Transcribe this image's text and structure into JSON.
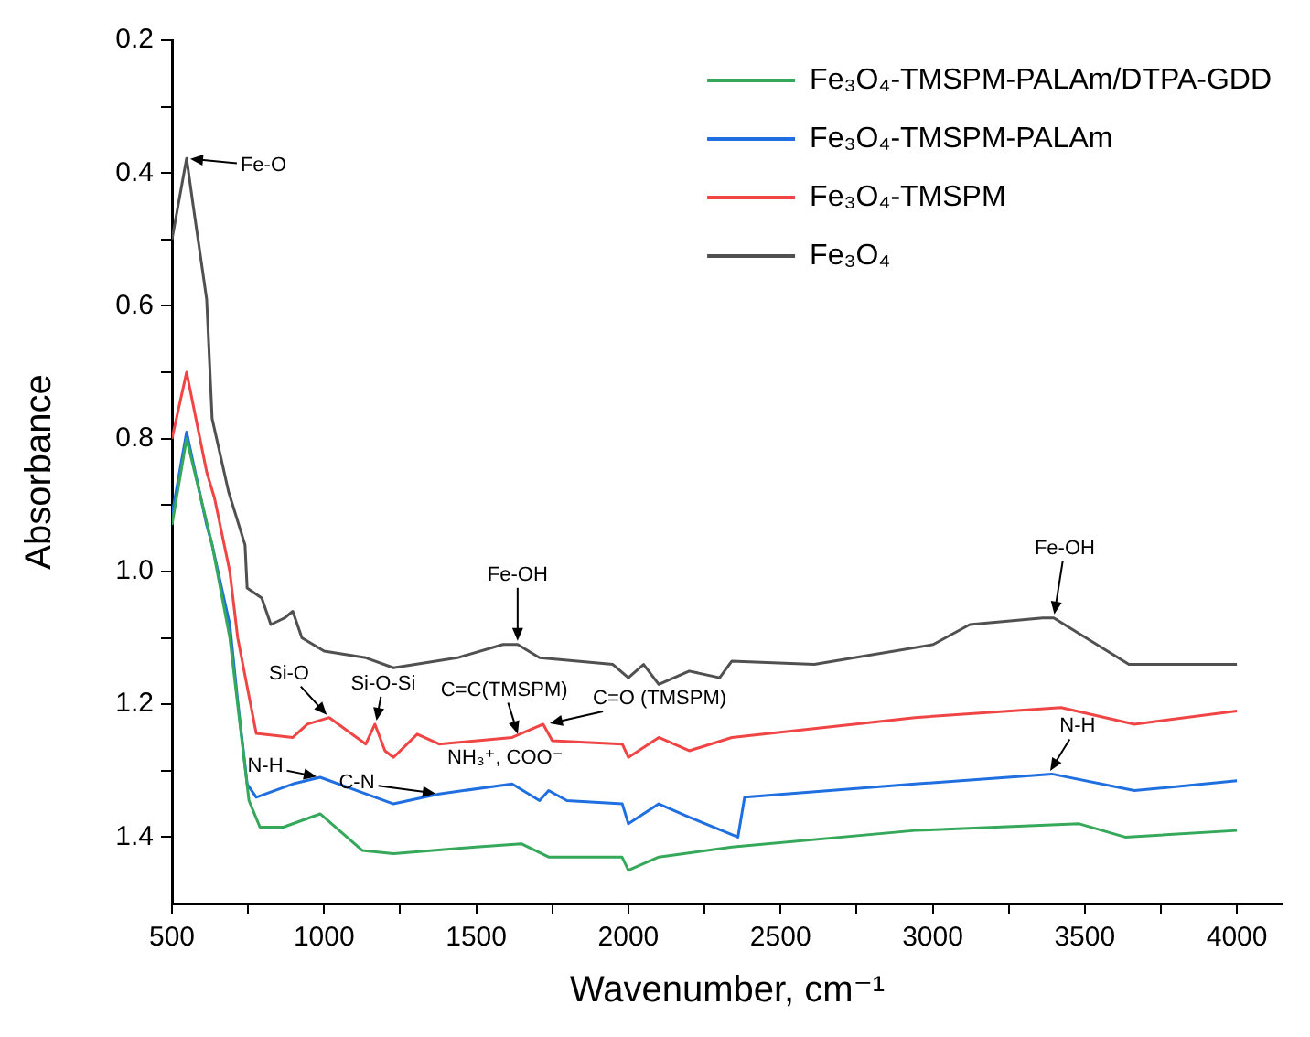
{
  "chart_data": {
    "type": "line",
    "xlabel": "Wavenumber, cm⁻¹",
    "ylabel": "Absorbance",
    "xlim": [
      500,
      4150
    ],
    "ylim": [
      1.5,
      0.2
    ],
    "xticks": [
      500,
      {
        "value": 750,
        "label": null
      },
      1000,
      {
        "value": 1250,
        "label": null
      },
      1500,
      {
        "value": 1750,
        "label": null
      },
      2000,
      {
        "value": 2250,
        "label": null
      },
      2500,
      {
        "value": 2750,
        "label": null
      },
      3000,
      {
        "value": 3250,
        "label": null
      },
      3500,
      {
        "value": 3750,
        "label": null
      },
      4000
    ],
    "yticks": [
      0.2,
      {
        "value": 0.3,
        "label": null
      },
      0.4,
      {
        "value": 0.5,
        "label": null
      },
      0.6,
      {
        "value": 0.7,
        "label": null
      },
      0.8,
      {
        "value": 0.9,
        "label": null
      },
      {
        "value": 1.0,
        "label": "1.0"
      },
      {
        "value": 1.1,
        "label": null
      },
      1.2,
      {
        "value": 1.3,
        "label": null
      },
      1.4
    ],
    "grid": false,
    "legend": "top right",
    "marker": "none",
    "line_style": "solid",
    "series": [
      {
        "name": "Fe₃O₄-TMSPM-PALAm/DTPA-GDD",
        "color": "#35a85a",
        "x": [
          500,
          548,
          632,
          690,
          753,
          789,
          866,
          987,
          1125,
          1228,
          1498,
          1648,
          1738,
          1979,
          2000,
          2100,
          2340,
          2942,
          3482,
          3633,
          4000
        ],
        "values": [
          0.93,
          0.8,
          0.96,
          1.1,
          1.345,
          1.385,
          1.385,
          1.365,
          1.42,
          1.425,
          1.415,
          1.41,
          1.43,
          1.43,
          1.45,
          1.43,
          1.415,
          1.39,
          1.38,
          1.4,
          1.39
        ]
      },
      {
        "name": "Fe₃O₄-TMSPM-PALAm",
        "color": "#1f6fe0",
        "x": [
          500,
          548,
          614,
          632,
          690,
          716,
          747,
          777,
          897,
          987,
          1137,
          1228,
          1378,
          1618,
          1708,
          1738,
          1798,
          1980,
          2000,
          2100,
          2200,
          2360,
          2382,
          2942,
          3392,
          3663,
          4000
        ],
        "values": [
          0.915,
          0.79,
          0.93,
          0.96,
          1.08,
          1.195,
          1.32,
          1.34,
          1.32,
          1.31,
          1.335,
          1.35,
          1.335,
          1.32,
          1.345,
          1.33,
          1.345,
          1.35,
          1.38,
          1.35,
          1.37,
          1.4,
          1.34,
          1.32,
          1.305,
          1.33,
          1.315
        ]
      },
      {
        "name": "Fe₃O₄-TMSPM",
        "color": "#f04545",
        "x": [
          500,
          548,
          614,
          640,
          690,
          716,
          777,
          897,
          945,
          1017,
          1137,
          1167,
          1200,
          1228,
          1306,
          1378,
          1618,
          1720,
          1750,
          1980,
          2000,
          2100,
          2200,
          2340,
          2942,
          3422,
          3663,
          4000
        ],
        "values": [
          0.8,
          0.7,
          0.85,
          0.89,
          1.0,
          1.1,
          1.244,
          1.25,
          1.23,
          1.22,
          1.26,
          1.23,
          1.27,
          1.28,
          1.245,
          1.26,
          1.25,
          1.23,
          1.255,
          1.26,
          1.28,
          1.25,
          1.27,
          1.25,
          1.22,
          1.205,
          1.23,
          1.21
        ]
      },
      {
        "name": "Fe₃O₄",
        "color": "#505050",
        "x": [
          500,
          548,
          570,
          614,
          632,
          686,
          740,
          747,
          795,
          825,
          870,
          897,
          927,
          1000,
          1137,
          1228,
          1438,
          1588,
          1636,
          1708,
          1949,
          2000,
          2050,
          2100,
          2200,
          2300,
          2340,
          2611,
          3002,
          3122,
          3362,
          3398,
          3645,
          4000
        ],
        "values": [
          0.5,
          0.378,
          0.45,
          0.59,
          0.77,
          0.88,
          0.96,
          1.025,
          1.04,
          1.08,
          1.07,
          1.06,
          1.1,
          1.12,
          1.13,
          1.145,
          1.13,
          1.11,
          1.11,
          1.13,
          1.14,
          1.16,
          1.14,
          1.17,
          1.15,
          1.16,
          1.135,
          1.14,
          1.11,
          1.08,
          1.07,
          1.07,
          1.14,
          1.14
        ]
      }
    ],
    "annotations": [
      {
        "text": "Fe-O",
        "x": 548,
        "y": 0.378
      },
      {
        "text": "Si-O",
        "x": 1017,
        "y": 1.22
      },
      {
        "text": "Si-O-Si",
        "x": 1170,
        "y": 1.23
      },
      {
        "text": "C=C(TMSPM)",
        "x": 1640,
        "y": 1.25
      },
      {
        "text": "C=O (TMSPM)",
        "x": 1730,
        "y": 1.23
      },
      {
        "text": "N-H",
        "x": 987,
        "y": 1.31
      },
      {
        "text": "C-N",
        "x": 1378,
        "y": 1.335
      },
      "NH₃⁺, COO⁻",
      {
        "text": "Fe-OH",
        "x": 1636,
        "y": 1.11
      },
      {
        "text": "Fe-OH",
        "x": 3398,
        "y": 1.07
      },
      {
        "text": "N-H",
        "x": 3380,
        "y": 1.305
      }
    ]
  }
}
